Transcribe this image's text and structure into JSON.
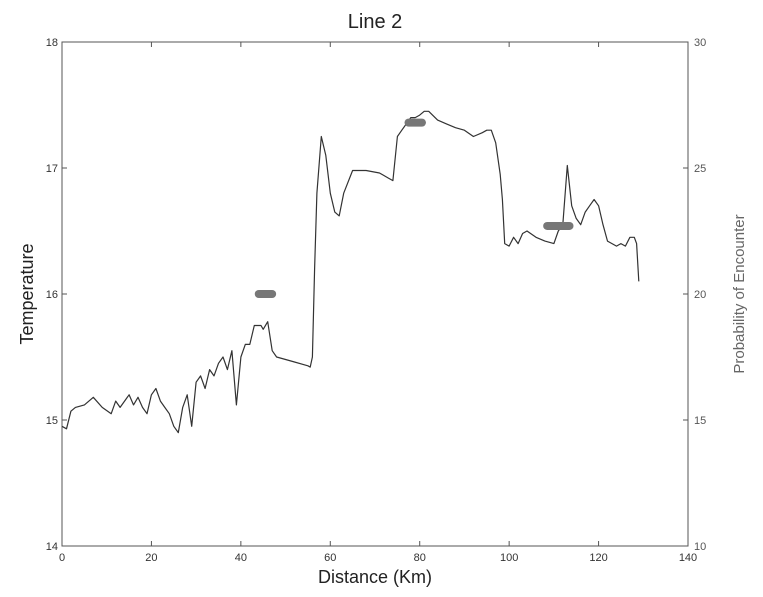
{
  "chart_data": {
    "type": "line",
    "title": "Line 2",
    "xlabel": "Distance (Km)",
    "ylabel": "Temperature",
    "y2label": "Probability of Encounter",
    "xlim": [
      0,
      140
    ],
    "ylim": [
      14,
      18
    ],
    "y2lim": [
      10,
      30
    ],
    "xticks": [
      "0",
      "20",
      "40",
      "60",
      "80",
      "100",
      "120",
      "140"
    ],
    "yticks": [
      "14",
      "15",
      "16",
      "17",
      "18"
    ],
    "y2ticks": [
      "10",
      "15",
      "20",
      "25",
      "30"
    ],
    "grid": false,
    "series": [
      {
        "axis": "left",
        "color": "#333333",
        "x": [
          0,
          1,
          2,
          3,
          5,
          7,
          9,
          11,
          12,
          13,
          15,
          16,
          17,
          18,
          19,
          20,
          21,
          22,
          23,
          24,
          25,
          26,
          27,
          28,
          29,
          30,
          31,
          32,
          33,
          34,
          35,
          36,
          37,
          38,
          39,
          40,
          41,
          42,
          43,
          44,
          44.5,
          45,
          46,
          47,
          48,
          50,
          52,
          54,
          55,
          55.5,
          56,
          56.5,
          57,
          58,
          59,
          60,
          61,
          62,
          63,
          65,
          68,
          71,
          73,
          74,
          75,
          76,
          77,
          78,
          79,
          80,
          81,
          82,
          84,
          86,
          88,
          90,
          92,
          94,
          95,
          96,
          97,
          98,
          98.5,
          99,
          100,
          101,
          102,
          103,
          104,
          106,
          108,
          110,
          111,
          112,
          113,
          114,
          115,
          116,
          117,
          118,
          119,
          120,
          121,
          122,
          123,
          124,
          125,
          126,
          127,
          128,
          128.5,
          129
        ],
        "y": [
          14.95,
          14.93,
          15.07,
          15.1,
          15.12,
          15.18,
          15.1,
          15.05,
          15.15,
          15.1,
          15.2,
          15.12,
          15.18,
          15.1,
          15.05,
          15.2,
          15.25,
          15.15,
          15.1,
          15.05,
          14.95,
          14.9,
          15.1,
          15.2,
          14.95,
          15.3,
          15.35,
          15.25,
          15.4,
          15.35,
          15.45,
          15.5,
          15.4,
          15.55,
          15.12,
          15.5,
          15.6,
          15.6,
          15.75,
          15.75,
          15.75,
          15.72,
          15.78,
          15.55,
          15.5,
          15.48,
          15.46,
          15.44,
          15.43,
          15.42,
          15.5,
          16.2,
          16.8,
          17.25,
          17.1,
          16.8,
          16.65,
          16.62,
          16.8,
          16.98,
          16.98,
          16.96,
          16.92,
          16.9,
          17.25,
          17.3,
          17.35,
          17.4,
          17.4,
          17.42,
          17.45,
          17.45,
          17.38,
          17.35,
          17.32,
          17.3,
          17.25,
          17.28,
          17.3,
          17.3,
          17.2,
          16.95,
          16.75,
          16.4,
          16.38,
          16.45,
          16.4,
          16.48,
          16.5,
          16.45,
          16.42,
          16.4,
          16.5,
          16.55,
          17.02,
          16.7,
          16.6,
          16.55,
          16.65,
          16.7,
          16.75,
          16.7,
          16.55,
          16.42,
          16.4,
          16.38,
          16.4,
          16.38,
          16.45,
          16.45,
          16.4,
          16.1
        ]
      },
      {
        "axis": "right",
        "style": "thick-segments",
        "color": "#777777",
        "segments": [
          {
            "x": [
              44,
              47
            ],
            "y": [
              20,
              20
            ]
          },
          {
            "x": [
              77.5,
              80.5
            ],
            "y": [
              26.8,
              26.8
            ]
          },
          {
            "x": [
              108.5,
              113.5
            ],
            "y": [
              22.7,
              22.7
            ]
          }
        ]
      }
    ]
  }
}
